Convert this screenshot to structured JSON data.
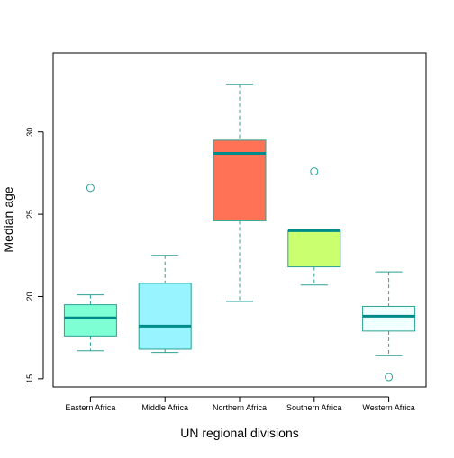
{
  "chart_data": {
    "type": "box",
    "xlabel": "UN regional divisions",
    "ylabel": "Median age",
    "ylim": [
      14.5,
      34.8
    ],
    "yticks": [
      15,
      20,
      25,
      30
    ],
    "grid": false,
    "legend": "none",
    "categories": [
      "Eastern Africa",
      "Middle Africa",
      "Northern Africa",
      "Southern Africa",
      "Western Africa"
    ],
    "boxes": [
      {
        "category": "Eastern Africa",
        "whisker_low": 16.7,
        "q1": 17.6,
        "median": 18.7,
        "q3": 19.5,
        "whisker_high": 20.1,
        "outliers": [
          26.6
        ],
        "fill": "#7fffd4"
      },
      {
        "category": "Middle Africa",
        "whisker_low": 16.6,
        "q1": 16.8,
        "median": 18.2,
        "q3": 20.8,
        "whisker_high": 22.5,
        "outliers": [],
        "fill": "#98f5ff"
      },
      {
        "category": "Northern Africa",
        "whisker_low": 19.7,
        "q1": 24.6,
        "median": 28.7,
        "q3": 29.5,
        "whisker_high": 32.9,
        "outliers": [],
        "fill": "#ff7256"
      },
      {
        "category": "Southern Africa",
        "whisker_low": 20.7,
        "q1": 21.8,
        "median": 24.0,
        "q3": 24.0,
        "whisker_high": 24.0,
        "outliers": [
          27.6
        ],
        "fill": "#caff70"
      },
      {
        "category": "Western Africa",
        "whisker_low": 16.4,
        "q1": 17.9,
        "median": 18.8,
        "q3": 19.4,
        "whisker_high": 21.5,
        "outliers": [
          15.1
        ],
        "fill": "#f0ffff"
      }
    ],
    "colors": {
      "border": "#2aa198",
      "median": "#008b8b",
      "axis": "#000000"
    }
  }
}
